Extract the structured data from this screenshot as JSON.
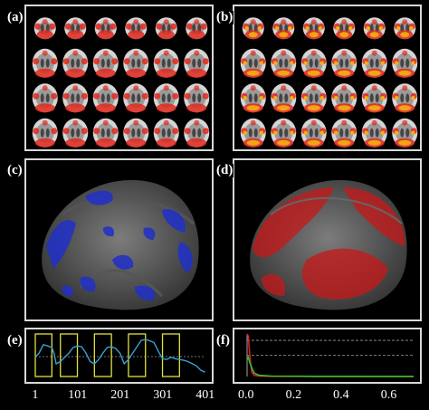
{
  "panels": {
    "a": {
      "label": "(a)"
    },
    "b": {
      "label": "(b)"
    },
    "c": {
      "label": "(c)"
    },
    "d": {
      "label": "(d)"
    },
    "e": {
      "label": "(e)"
    },
    "f": {
      "label": "(f)"
    }
  },
  "colors": {
    "border": "#d8d8d8",
    "brain_gray": "#9a9a9a",
    "activation_red": "#e0281c",
    "activation_yellow": "#f5b010",
    "surface_blue": "#2030c8",
    "surface_red": "#c81818",
    "timecourse_blue": "#3aa0d8",
    "block_yellow": "#e0e040",
    "spectrum_red": "#e02020",
    "spectrum_green": "#30c030",
    "dashed_line": "#9a9a9a"
  },
  "chart_data": [
    {
      "type": "line",
      "panel": "e",
      "xticks": [
        "1",
        "101",
        "201",
        "301",
        "401"
      ],
      "xlim": [
        1,
        401
      ],
      "series": [
        {
          "values_x": [
            1,
            10,
            20,
            30,
            40,
            45,
            50,
            60,
            70,
            80,
            90,
            100,
            110,
            120,
            130,
            140,
            150,
            160,
            170,
            180,
            190,
            200,
            210,
            220,
            230,
            240,
            250,
            260,
            270,
            280,
            290,
            300,
            310,
            320,
            330,
            340,
            350,
            360,
            370,
            380,
            390,
            400
          ],
          "values_y": [
            0.45,
            0.55,
            0.75,
            0.72,
            0.68,
            0.55,
            0.3,
            0.35,
            0.45,
            0.55,
            0.68,
            0.72,
            0.7,
            0.55,
            0.35,
            0.3,
            0.4,
            0.55,
            0.68,
            0.7,
            0.66,
            0.55,
            0.3,
            0.4,
            0.55,
            0.7,
            0.85,
            0.87,
            0.84,
            0.8,
            0.6,
            0.42,
            0.4,
            0.45,
            0.42,
            0.4,
            0.38,
            0.35,
            0.3,
            0.25,
            0.15,
            0.1
          ]
        }
      ],
      "blocks": [
        [
          1,
          40
        ],
        [
          60,
          100
        ],
        [
          140,
          180
        ],
        [
          220,
          260
        ],
        [
          300,
          340
        ]
      ]
    },
    {
      "type": "line",
      "panel": "f",
      "xticks": [
        "0.0",
        "0.2",
        "0.4",
        "0.6"
      ],
      "xlim": [
        0,
        0.7
      ],
      "series": [
        {
          "values_x": [
            0,
            0.005,
            0.01,
            0.015,
            0.02,
            0.03,
            0.05,
            0.1,
            0.3,
            0.7
          ],
          "values_y": [
            1,
            0.95,
            0.6,
            0.3,
            0.1,
            0.03,
            0.01,
            0.005,
            0.003,
            0.002
          ]
        },
        {
          "values_x": [
            0,
            0.005,
            0.01,
            0.02,
            0.03,
            0.05,
            0.1,
            0.3,
            0.7
          ],
          "values_y": [
            0.4,
            0.45,
            0.35,
            0.2,
            0.08,
            0.03,
            0.01,
            0.005,
            0.003
          ]
        }
      ],
      "dashed_levels": [
        0.85,
        0.5
      ]
    }
  ]
}
